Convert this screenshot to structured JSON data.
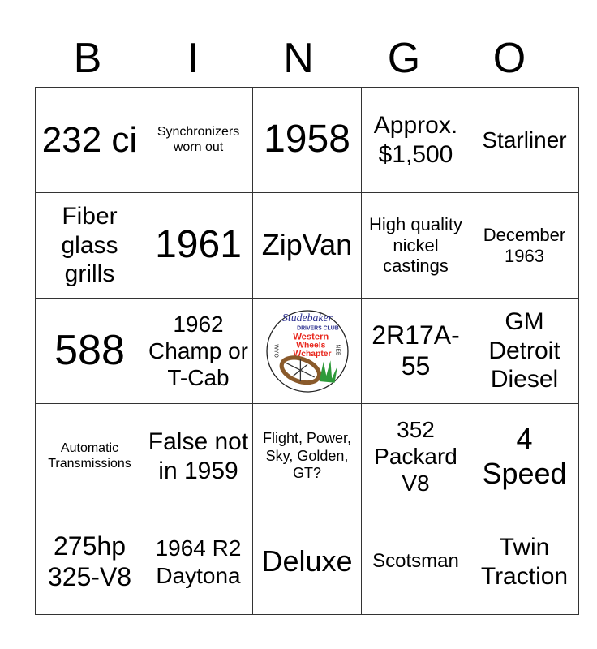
{
  "header": [
    "B",
    "I",
    "N",
    "G",
    "O"
  ],
  "cells": [
    [
      "232 ci",
      "Synchronizers worn out",
      "1958",
      "Approx. $1,500",
      "Starliner"
    ],
    [
      "Fiber glass grills",
      "1961",
      "ZipVan",
      "High quality nickel castings",
      "December 1963"
    ],
    [
      "588",
      "1962 Champ or T-Cab",
      "__LOGO__",
      "2R17A-55",
      "GM Detroit Diesel"
    ],
    [
      "Automatic Transmissions",
      "False not in 1959",
      "Flight, Power, Sky, Golden, GT?",
      "352 Packard V8",
      "4 Speed"
    ],
    [
      "275hp 325-V8",
      "1964 R2 Daytona",
      "Deluxe",
      "Scotsman",
      "Twin Traction"
    ]
  ],
  "logo": {
    "brand": "Studebaker",
    "club": "DRIVERS CLUB",
    "chapter": [
      "Western",
      "Wheels",
      "Wchapter"
    ],
    "left": "WYO",
    "right": "NEB",
    "colors": {
      "brand": "#2b2f8f",
      "chapter": "#e8261c",
      "wheel": "#8a5a2b",
      "grass": "#2e9a3a"
    }
  }
}
